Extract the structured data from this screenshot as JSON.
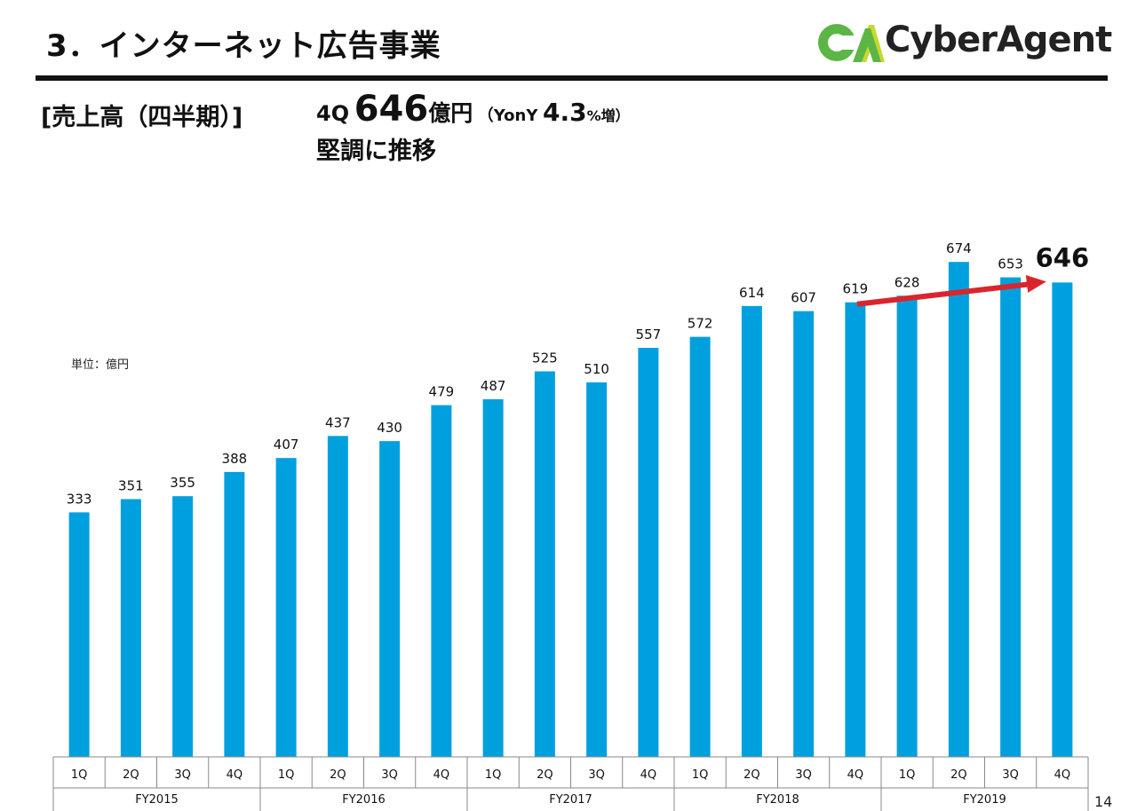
{
  "page": {
    "title": "3．インターネット広告事業",
    "logo_text": "CyberAgent",
    "logo_mark_text": "CA",
    "section_label": "[売上高（四半期）]",
    "headline": {
      "quarter": "4Q",
      "value": "646",
      "unit": "億円",
      "yoy_open": "（YonY",
      "yoy_value": "4.3",
      "yoy_suffix": "%増）"
    },
    "subline": "堅調に推移",
    "unit_note": "単位：億円",
    "page_number": "14"
  },
  "colors": {
    "bar": "#00a0de",
    "arrow": "#d9262c",
    "logo_green": "#5bb645",
    "logo_yellow": "#c7d82e"
  },
  "chart_data": {
    "type": "bar",
    "title": "売上高（四半期）",
    "ylabel": "億円",
    "ylim": [
      0,
      700
    ],
    "grid": false,
    "categories": [
      "1Q",
      "2Q",
      "3Q",
      "4Q",
      "1Q",
      "2Q",
      "3Q",
      "4Q",
      "1Q",
      "2Q",
      "3Q",
      "4Q",
      "1Q",
      "2Q",
      "3Q",
      "4Q",
      "1Q",
      "2Q",
      "3Q",
      "4Q"
    ],
    "groups": [
      "FY2015",
      "FY2016",
      "FY2017",
      "FY2018",
      "FY2019"
    ],
    "values": [
      333,
      351,
      355,
      388,
      407,
      437,
      430,
      479,
      487,
      525,
      510,
      557,
      572,
      614,
      607,
      619,
      628,
      674,
      653,
      646
    ],
    "value_labels": [
      "333",
      "351",
      "355",
      "388",
      "407",
      "437",
      "430",
      "479",
      "487",
      "525",
      "510",
      "557",
      "572",
      "614",
      "607",
      "619",
      "628",
      "674",
      "653",
      "646"
    ],
    "highlight_index": 19,
    "trend_arrow": {
      "from_index": 15,
      "to_index": 19
    }
  }
}
